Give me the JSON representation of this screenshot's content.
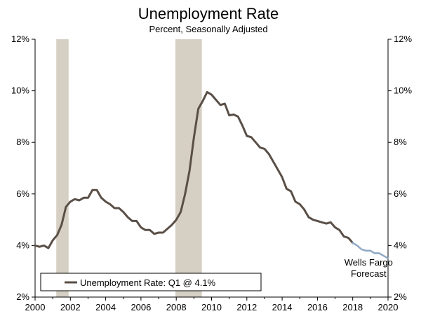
{
  "chart_data": {
    "type": "line",
    "title": "Unemployment Rate",
    "subtitle": "Percent, Seasonally Adjusted",
    "xlim": [
      2000,
      2020
    ],
    "ylim": [
      2,
      12
    ],
    "x_ticks": [
      2000,
      2002,
      2004,
      2006,
      2008,
      2010,
      2012,
      2014,
      2016,
      2018,
      2020
    ],
    "y_ticks": [
      2,
      4,
      6,
      8,
      10,
      12
    ],
    "y_tick_labels": [
      "2%",
      "4%",
      "6%",
      "8%",
      "10%",
      "12%"
    ],
    "grid": false,
    "legend": {
      "position": "bottom-left",
      "label": "Unemployment Rate: Q1 @ 4.1%"
    },
    "recessions": [
      [
        2001.2,
        2001.9
      ],
      [
        2007.95,
        2009.45
      ]
    ],
    "colors": {
      "actual": "#5a4f47",
      "forecast": "#8fa8c6",
      "recession": "#d6d0c4"
    },
    "annotation": {
      "lines": [
        "Wells Fargo",
        "Forecast"
      ],
      "x": 2018.9,
      "y": 3.0
    },
    "series": [
      {
        "name": "Unemployment Rate: Q1 @ 4.1%",
        "style": "actual",
        "x": [
          2000.0,
          2000.25,
          2000.5,
          2000.75,
          2001.0,
          2001.25,
          2001.5,
          2001.75,
          2002.0,
          2002.25,
          2002.5,
          2002.75,
          2003.0,
          2003.25,
          2003.5,
          2003.75,
          2004.0,
          2004.25,
          2004.5,
          2004.75,
          2005.0,
          2005.25,
          2005.5,
          2005.75,
          2006.0,
          2006.25,
          2006.5,
          2006.75,
          2007.0,
          2007.25,
          2007.5,
          2007.75,
          2008.0,
          2008.25,
          2008.5,
          2008.75,
          2009.0,
          2009.25,
          2009.5,
          2009.75,
          2010.0,
          2010.25,
          2010.5,
          2010.75,
          2011.0,
          2011.25,
          2011.5,
          2011.75,
          2012.0,
          2012.25,
          2012.5,
          2012.75,
          2013.0,
          2013.25,
          2013.5,
          2013.75,
          2014.0,
          2014.25,
          2014.5,
          2014.75,
          2015.0,
          2015.25,
          2015.5,
          2015.75,
          2016.0,
          2016.25,
          2016.5,
          2016.75,
          2017.0,
          2017.25,
          2017.5,
          2017.75,
          2018.0
        ],
        "y": [
          4.0,
          3.95,
          4.0,
          3.9,
          4.2,
          4.4,
          4.8,
          5.5,
          5.7,
          5.8,
          5.75,
          5.85,
          5.85,
          6.15,
          6.15,
          5.85,
          5.7,
          5.6,
          5.45,
          5.45,
          5.3,
          5.1,
          4.95,
          4.95,
          4.7,
          4.6,
          4.6,
          4.45,
          4.5,
          4.5,
          4.65,
          4.8,
          5.0,
          5.3,
          6.0,
          6.9,
          8.2,
          9.3,
          9.6,
          9.95,
          9.85,
          9.65,
          9.45,
          9.5,
          9.05,
          9.08,
          9.0,
          8.65,
          8.25,
          8.2,
          8.0,
          7.8,
          7.75,
          7.55,
          7.25,
          6.95,
          6.65,
          6.2,
          6.1,
          5.7,
          5.6,
          5.4,
          5.1,
          5.0,
          4.95,
          4.9,
          4.85,
          4.9,
          4.7,
          4.6,
          4.35,
          4.3,
          4.1
        ]
      },
      {
        "name": "Wells Fargo Forecast",
        "style": "forecast",
        "x": [
          2018.0,
          2018.25,
          2018.5,
          2018.75,
          2019.0,
          2019.25,
          2019.5,
          2019.75,
          2020.0
        ],
        "y": [
          4.1,
          4.0,
          3.85,
          3.8,
          3.8,
          3.7,
          3.7,
          3.6,
          3.5
        ]
      }
    ]
  }
}
